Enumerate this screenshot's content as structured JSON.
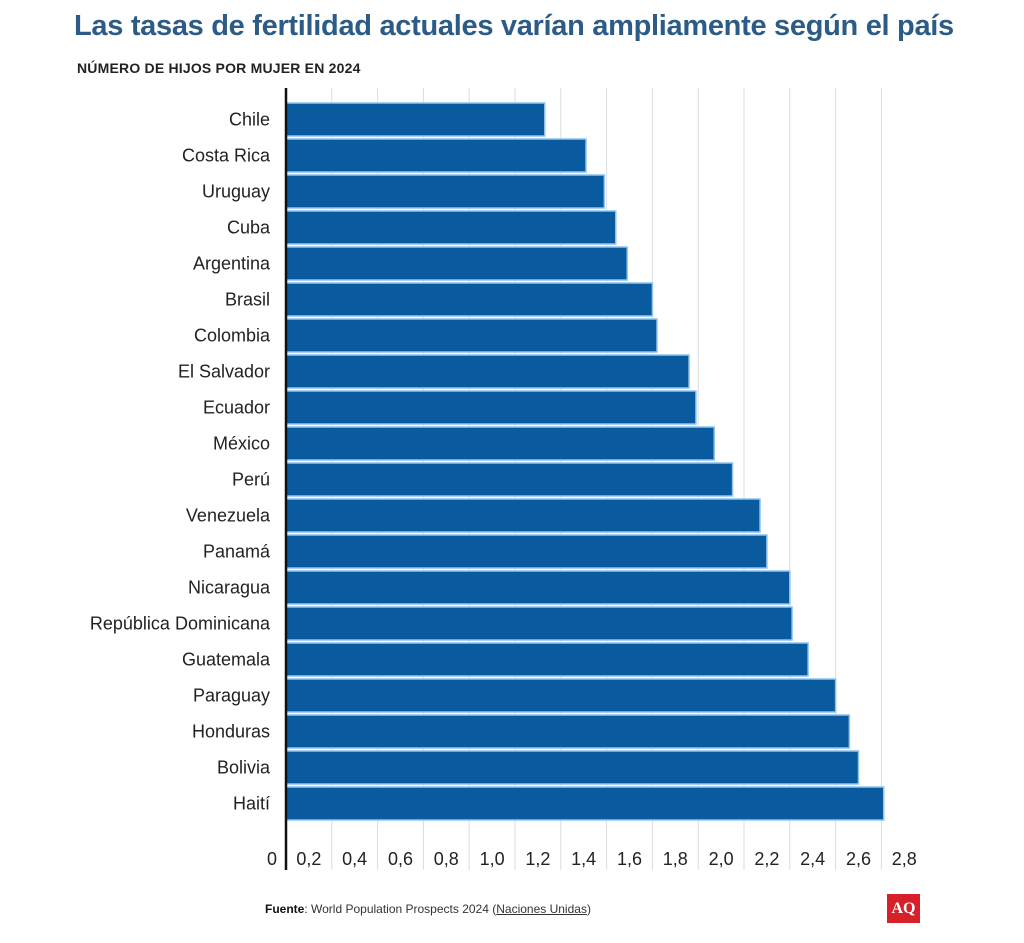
{
  "chart_data": {
    "type": "bar",
    "orientation": "horizontal",
    "title": "Las tasas de fertilidad actuales varían ampliamente según el país",
    "subtitle": "NÚMERO DE HIJOS POR MUJER EN 2024",
    "categories": [
      "Chile",
      "Costa Rica",
      "Uruguay",
      "Cuba",
      "Argentina",
      "Brasil",
      "Colombia",
      "El Salvador",
      "Ecuador",
      "México",
      "Perú",
      "Venezuela",
      "Panamá",
      "Nicaragua",
      "República Dominicana",
      "Guatemala",
      "Paraguay",
      "Honduras",
      "Bolivia",
      "Haití"
    ],
    "values": [
      1.13,
      1.31,
      1.39,
      1.44,
      1.49,
      1.6,
      1.62,
      1.76,
      1.79,
      1.87,
      1.95,
      2.07,
      2.1,
      2.2,
      2.21,
      2.28,
      2.4,
      2.46,
      2.5,
      2.61
    ],
    "xlim": [
      0,
      2.8
    ],
    "xticks": [
      "0",
      "0,2",
      "0,4",
      "0,6",
      "0,8",
      "1,0",
      "1,2",
      "1,4",
      "1,6",
      "1,8",
      "2,0",
      "2,2",
      "2,4",
      "2,6",
      "2,8"
    ],
    "grid": true,
    "bar_color": "#0a5aa0"
  },
  "footer": {
    "source_label": "Fuente",
    "source_text": ": World Population Prospects 2024 (",
    "source_link": "Naciones Unidas",
    "source_end": ")",
    "logo": "AQ"
  }
}
